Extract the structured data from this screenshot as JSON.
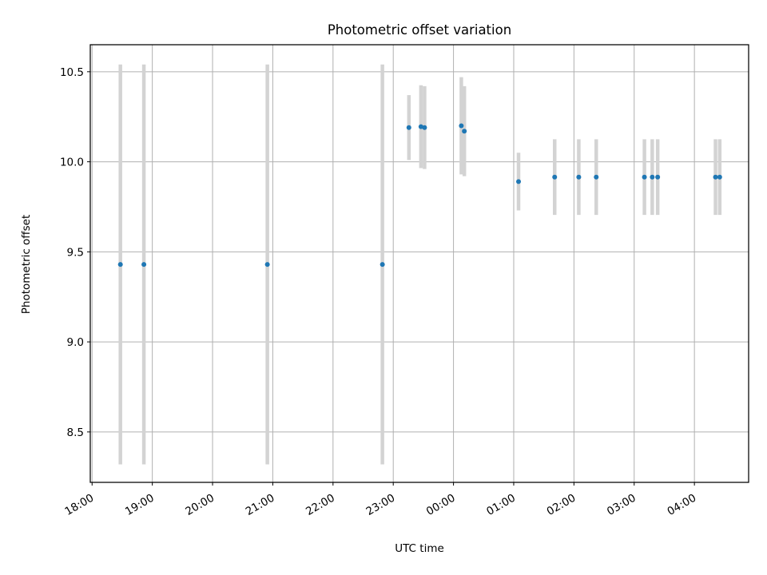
{
  "chart_data": {
    "type": "scatter",
    "title": "Photometric offset variation",
    "xlabel": "UTC time",
    "ylabel": "Photometric offset",
    "x_axis_kind": "time",
    "x_unit": "hours UTC (continuing past midnight)",
    "xlim": [
      17.97,
      28.9
    ],
    "ylim": [
      8.22,
      10.65
    ],
    "grid": true,
    "x_ticks": [
      {
        "value": 18,
        "label": "18:00"
      },
      {
        "value": 19,
        "label": "19:00"
      },
      {
        "value": 20,
        "label": "20:00"
      },
      {
        "value": 21,
        "label": "21:00"
      },
      {
        "value": 22,
        "label": "22:00"
      },
      {
        "value": 23,
        "label": "23:00"
      },
      {
        "value": 24,
        "label": "00:00"
      },
      {
        "value": 25,
        "label": "01:00"
      },
      {
        "value": 26,
        "label": "02:00"
      },
      {
        "value": 27,
        "label": "03:00"
      },
      {
        "value": 28,
        "label": "04:00"
      }
    ],
    "y_ticks": [
      {
        "value": 8.5,
        "label": "8.5"
      },
      {
        "value": 9.0,
        "label": "9.0"
      },
      {
        "value": 9.5,
        "label": "9.5"
      },
      {
        "value": 10.0,
        "label": "10.0"
      },
      {
        "value": 10.5,
        "label": "10.5"
      }
    ],
    "series": [
      {
        "marker_color": "#1f77b4",
        "errorbar_color": "#d3d3d3",
        "points": [
          {
            "x": 18.47,
            "y": 9.43,
            "err": 1.11
          },
          {
            "x": 18.86,
            "y": 9.43,
            "err": 1.11
          },
          {
            "x": 20.91,
            "y": 9.43,
            "err": 1.11
          },
          {
            "x": 22.82,
            "y": 9.43,
            "err": 1.11
          },
          {
            "x": 23.26,
            "y": 10.19,
            "err": 0.18
          },
          {
            "x": 23.46,
            "y": 10.195,
            "err": 0.23
          },
          {
            "x": 23.52,
            "y": 10.19,
            "err": 0.23
          },
          {
            "x": 24.13,
            "y": 10.2,
            "err": 0.27
          },
          {
            "x": 24.18,
            "y": 10.17,
            "err": 0.25
          },
          {
            "x": 25.08,
            "y": 9.89,
            "err": 0.16
          },
          {
            "x": 25.68,
            "y": 9.915,
            "err": 0.21
          },
          {
            "x": 26.08,
            "y": 9.915,
            "err": 0.21
          },
          {
            "x": 26.37,
            "y": 9.915,
            "err": 0.21
          },
          {
            "x": 27.17,
            "y": 9.915,
            "err": 0.21
          },
          {
            "x": 27.3,
            "y": 9.915,
            "err": 0.21
          },
          {
            "x": 27.39,
            "y": 9.915,
            "err": 0.21
          },
          {
            "x": 28.35,
            "y": 9.915,
            "err": 0.21
          },
          {
            "x": 28.42,
            "y": 9.915,
            "err": 0.21
          }
        ]
      }
    ]
  }
}
